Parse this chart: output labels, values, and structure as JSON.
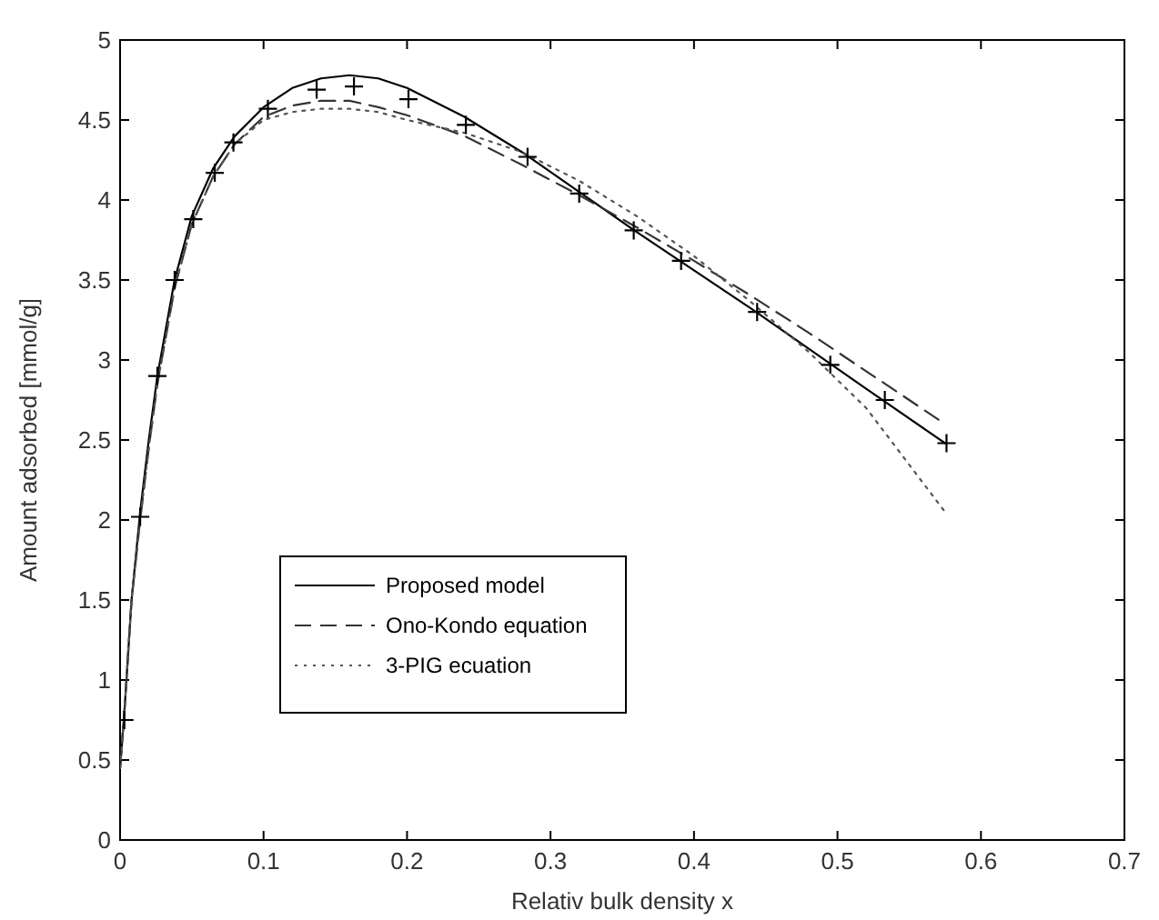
{
  "chart_data": {
    "type": "line",
    "xlabel": "Relativ bulk density x",
    "ylabel": "Amount adsorbed [mmol/g]",
    "xlim": [
      0,
      0.7
    ],
    "ylim": [
      0,
      5
    ],
    "xticks": [
      0,
      0.1,
      0.2,
      0.3,
      0.4,
      0.5,
      0.6,
      0.7
    ],
    "yticks": [
      0,
      0.5,
      1,
      1.5,
      2,
      2.5,
      3,
      3.5,
      4,
      4.5,
      5
    ],
    "grid": false,
    "legend": "bottom left",
    "series": [
      {
        "name": "Proposed model",
        "color": "#000000",
        "line_style": "solid",
        "marker": "none",
        "x": [
          0,
          0.003,
          0.008,
          0.014,
          0.02,
          0.026,
          0.038,
          0.05,
          0.065,
          0.08,
          0.1,
          0.12,
          0.14,
          0.16,
          0.18,
          0.2,
          0.24,
          0.28,
          0.32,
          0.36,
          0.4,
          0.44,
          0.48,
          0.52,
          0.575
        ],
        "values": [
          0.45,
          0.8,
          1.5,
          2.05,
          2.5,
          2.9,
          3.5,
          3.9,
          4.2,
          4.4,
          4.58,
          4.7,
          4.76,
          4.78,
          4.76,
          4.7,
          4.52,
          4.3,
          4.05,
          3.8,
          3.56,
          3.32,
          3.07,
          2.82,
          2.48
        ]
      },
      {
        "name": "Ono-Kondo equation",
        "color": "#333333",
        "line_style": "dashed",
        "marker": "none",
        "x": [
          0,
          0.003,
          0.008,
          0.014,
          0.02,
          0.026,
          0.038,
          0.05,
          0.065,
          0.08,
          0.1,
          0.12,
          0.14,
          0.16,
          0.18,
          0.2,
          0.24,
          0.28,
          0.32,
          0.36,
          0.4,
          0.44,
          0.48,
          0.52,
          0.575
        ],
        "values": [
          0.45,
          0.8,
          1.5,
          2.0,
          2.45,
          2.85,
          3.45,
          3.85,
          4.15,
          4.35,
          4.52,
          4.59,
          4.62,
          4.62,
          4.58,
          4.53,
          4.4,
          4.22,
          4.03,
          3.83,
          3.62,
          3.4,
          3.17,
          2.93,
          2.6
        ]
      },
      {
        "name": "3-PIG ecuation",
        "color": "#555555",
        "line_style": "dotted",
        "marker": "none",
        "x": [
          0,
          0.003,
          0.008,
          0.014,
          0.02,
          0.026,
          0.038,
          0.05,
          0.065,
          0.08,
          0.1,
          0.12,
          0.14,
          0.16,
          0.18,
          0.2,
          0.24,
          0.28,
          0.32,
          0.36,
          0.4,
          0.44,
          0.48,
          0.52,
          0.575
        ],
        "values": [
          0.45,
          0.8,
          1.5,
          2.0,
          2.45,
          2.85,
          3.45,
          3.85,
          4.15,
          4.35,
          4.5,
          4.55,
          4.57,
          4.57,
          4.55,
          4.5,
          4.42,
          4.3,
          4.12,
          3.9,
          3.65,
          3.36,
          3.05,
          2.7,
          2.05
        ]
      },
      {
        "type": "scatter",
        "color": "#000000",
        "marker": "cross",
        "x": [
          0.003,
          0.014,
          0.026,
          0.038,
          0.051,
          0.066,
          0.079,
          0.103,
          0.137,
          0.163,
          0.201,
          0.241,
          0.284,
          0.32,
          0.358,
          0.391,
          0.444,
          0.495,
          0.533,
          0.576
        ],
        "values": [
          0.75,
          2.02,
          2.9,
          3.5,
          3.88,
          4.17,
          4.36,
          4.57,
          4.69,
          4.71,
          4.63,
          4.47,
          4.27,
          4.04,
          3.81,
          3.62,
          3.3,
          2.97,
          2.75,
          2.48
        ]
      }
    ]
  }
}
